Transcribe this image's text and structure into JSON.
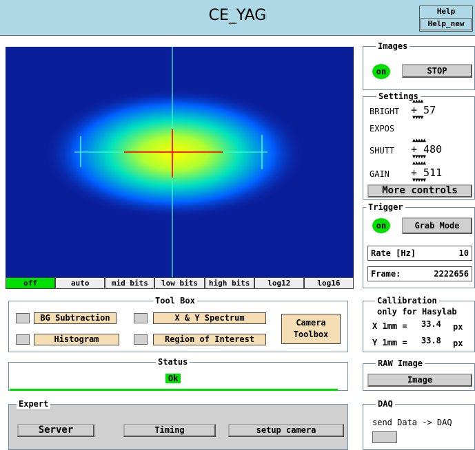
{
  "header": {
    "title": "CE_YAG",
    "help": "Help",
    "help_new": "Help_new"
  },
  "image_modes": {
    "items": [
      "off",
      "auto",
      "mid bits",
      "low bits",
      "high bits",
      "log12",
      "log16"
    ],
    "active": "off"
  },
  "images_panel": {
    "label": "Images",
    "on": "on",
    "stop": "STOP"
  },
  "settings_panel": {
    "label": "Settings",
    "bright_label": "BRIGHT",
    "bright_value": "+ 57",
    "expos_label": "EXPOS",
    "shutt_label": "SHUTT",
    "shutt_value": "+ 480",
    "gain_label": "GAIN",
    "gain_value": "+ 511",
    "more": "More controls"
  },
  "trigger_panel": {
    "label": "Trigger",
    "on": "on",
    "grab_mode": "Grab Mode",
    "rate_label": "Rate [Hz]",
    "rate_value": "10",
    "frame_label": "Frame:",
    "frame_value": "2222656"
  },
  "calibration_panel": {
    "label": "Callibration",
    "note": "only for Hasylab",
    "x_label": "X 1mm =",
    "x_value": "33.4",
    "x_unit": "px",
    "y_label": "Y 1mm =",
    "y_value": "33.8",
    "y_unit": "px"
  },
  "raw_panel": {
    "label": "RAW Image",
    "image": "Image"
  },
  "daq_panel": {
    "label": "DAQ",
    "send": "send Data -> DAQ"
  },
  "toolbox": {
    "label": "Tool Box",
    "bg": "BG Subtraction",
    "xy": "X & Y Spectrum",
    "hist": "Histogram",
    "roi": "Region of Interest",
    "camera": "Camera Toolbox"
  },
  "status": {
    "label": "Status",
    "value": "Ok"
  },
  "expert": {
    "label": "Expert",
    "server": "Server",
    "timing": "Timing",
    "setup": "setup camera"
  },
  "colors": {
    "header": "#add8e6",
    "active": "#00e000",
    "button": "#f5deb3"
  }
}
